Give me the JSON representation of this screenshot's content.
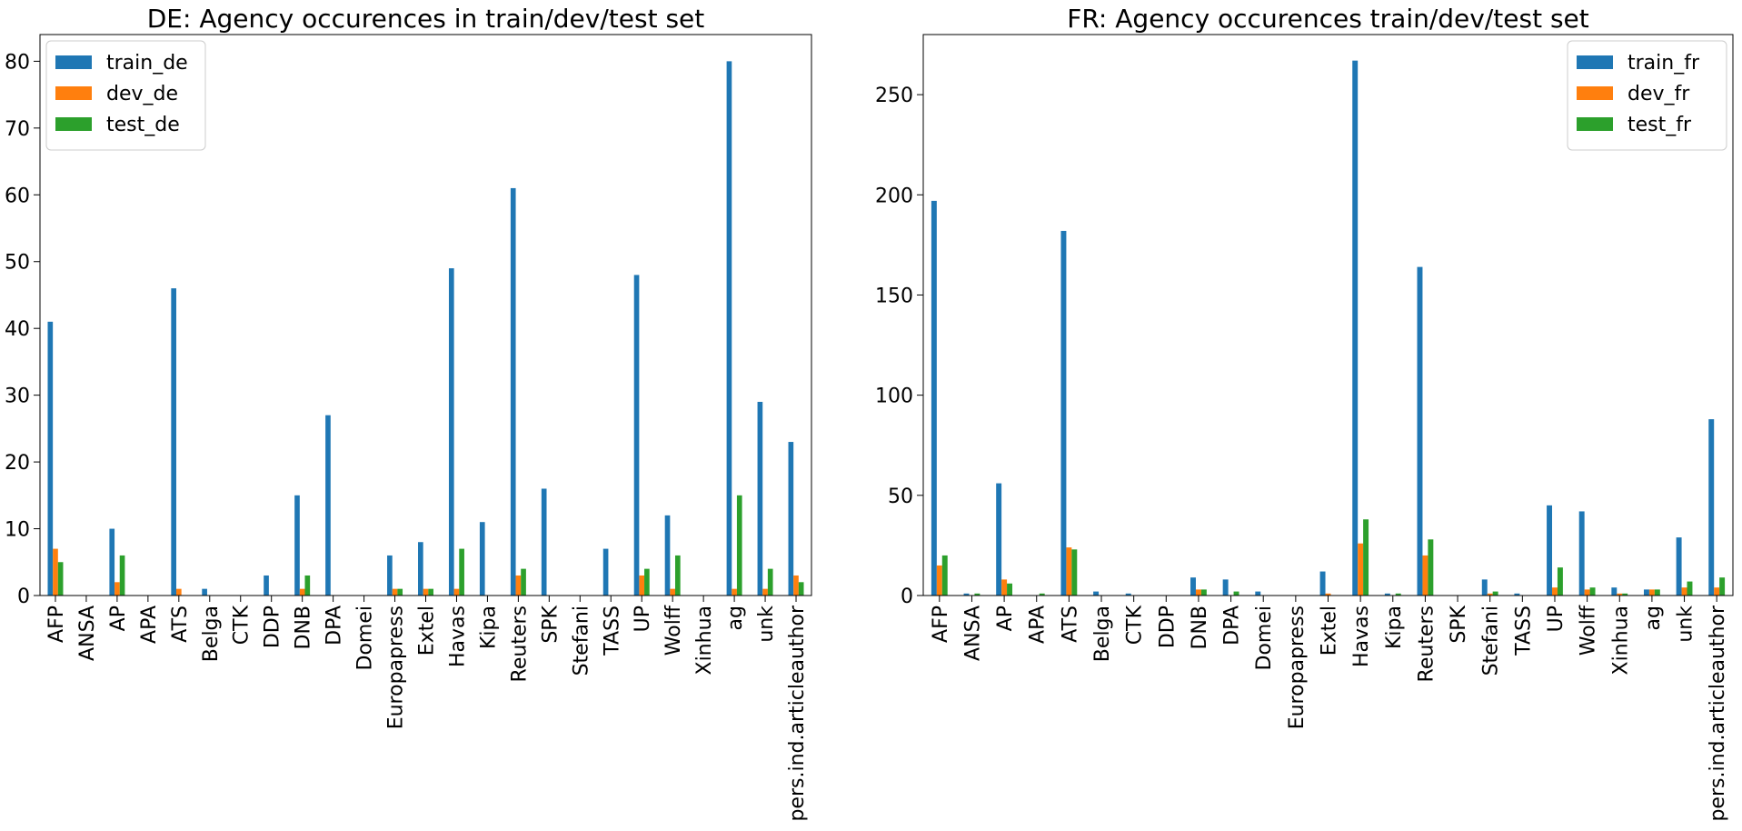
{
  "chart_data": [
    {
      "type": "bar",
      "title": "DE: Agency occurences in train/dev/test set",
      "xlabel": "",
      "ylabel": "",
      "ylim": [
        0,
        84
      ],
      "yticks": [
        0,
        10,
        20,
        30,
        40,
        50,
        60,
        70,
        80
      ],
      "legend_position": "top-left",
      "grid": false,
      "categories": [
        "AFP",
        "ANSA",
        "AP",
        "APA",
        "ATS",
        "Belga",
        "CTK",
        "DDP",
        "DNB",
        "DPA",
        "Domei",
        "Europapress",
        "Extel",
        "Havas",
        "Kipa",
        "Reuters",
        "SPK",
        "Stefani",
        "TASS",
        "UP",
        "Wolff",
        "Xinhua",
        "ag",
        "unk",
        "pers.ind.articleauthor"
      ],
      "series": [
        {
          "name": "train_de",
          "color": "#1f77b4",
          "values": [
            41,
            0,
            10,
            0,
            46,
            1,
            0,
            3,
            15,
            27,
            0,
            6,
            8,
            49,
            11,
            61,
            16,
            0,
            7,
            48,
            12,
            0,
            80,
            29,
            23
          ]
        },
        {
          "name": "dev_de",
          "color": "#ff7f0e",
          "values": [
            7,
            0,
            2,
            0,
            1,
            0,
            0,
            0,
            1,
            0,
            0,
            1,
            1,
            1,
            0,
            3,
            0,
            0,
            0,
            3,
            1,
            0,
            1,
            1,
            3
          ]
        },
        {
          "name": "test_de",
          "color": "#2ca02c",
          "values": [
            5,
            0,
            6,
            0,
            0,
            0,
            0,
            0,
            3,
            0,
            0,
            1,
            1,
            7,
            0,
            4,
            0,
            0,
            0,
            4,
            6,
            0,
            15,
            4,
            2
          ]
        }
      ]
    },
    {
      "type": "bar",
      "title": "FR: Agency occurences train/dev/test set",
      "xlabel": "",
      "ylabel": "",
      "ylim": [
        0,
        280
      ],
      "yticks": [
        0,
        50,
        100,
        150,
        200,
        250
      ],
      "legend_position": "top-right",
      "grid": false,
      "categories": [
        "AFP",
        "ANSA",
        "AP",
        "APA",
        "ATS",
        "Belga",
        "CTK",
        "DDP",
        "DNB",
        "DPA",
        "Domei",
        "Europapress",
        "Extel",
        "Havas",
        "Kipa",
        "Reuters",
        "SPK",
        "Stefani",
        "TASS",
        "UP",
        "Wolff",
        "Xinhua",
        "ag",
        "unk",
        "pers.ind.articleauthor"
      ],
      "series": [
        {
          "name": "train_fr",
          "color": "#1f77b4",
          "values": [
            197,
            1,
            56,
            0,
            182,
            2,
            1,
            0,
            9,
            8,
            2,
            0,
            12,
            267,
            1,
            164,
            0,
            8,
            1,
            45,
            42,
            4,
            3,
            29,
            88
          ]
        },
        {
          "name": "dev_fr",
          "color": "#ff7f0e",
          "values": [
            15,
            0,
            8,
            0,
            24,
            0,
            0,
            0,
            3,
            0,
            0,
            0,
            1,
            26,
            0,
            20,
            0,
            1,
            0,
            4,
            3,
            1,
            3,
            4,
            4
          ]
        },
        {
          "name": "test_fr",
          "color": "#2ca02c",
          "values": [
            20,
            1,
            6,
            1,
            23,
            0,
            0,
            0,
            3,
            2,
            0,
            0,
            0,
            38,
            1,
            28,
            0,
            2,
            0,
            14,
            4,
            1,
            3,
            7,
            9
          ]
        }
      ]
    }
  ]
}
